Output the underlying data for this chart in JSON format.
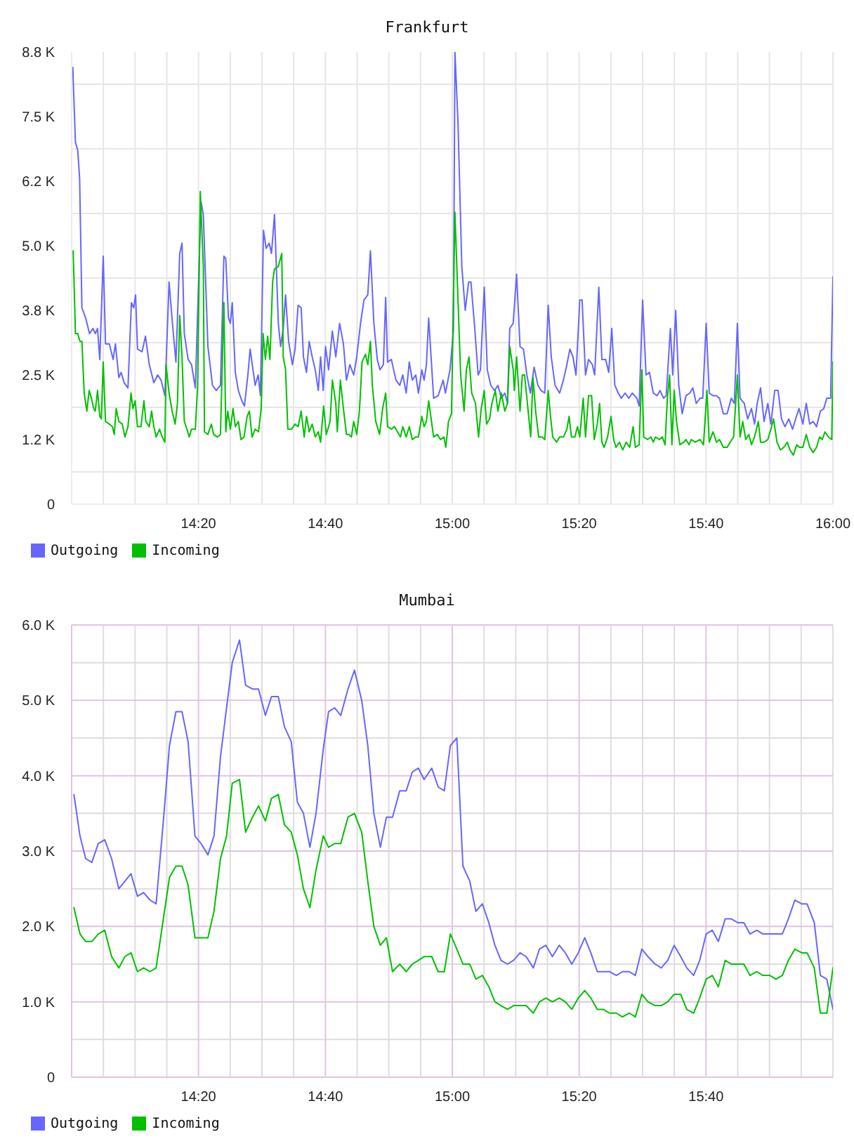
{
  "chart_data": [
    {
      "type": "line",
      "title": "Frankfurt",
      "series": [
        {
          "name": "Outgoing",
          "color": "#6666ff",
          "x": [
            14.003,
            14.01,
            14.016,
            14.021,
            14.027,
            14.037,
            14.047,
            14.056,
            14.062,
            14.068,
            14.074,
            14.083,
            14.089,
            14.099,
            14.109,
            14.115,
            14.124,
            14.13,
            14.138,
            14.148,
            14.157,
            14.163,
            14.168,
            14.173,
            14.185,
            14.194,
            14.204,
            14.216,
            14.226,
            14.235,
            14.245,
            14.256,
            14.266,
            14.274,
            14.284,
            14.29,
            14.296,
            14.306,
            14.315,
            14.325,
            14.34,
            14.346,
            14.358,
            14.37,
            14.38,
            14.391,
            14.4,
            14.405,
            14.412,
            14.417,
            14.422,
            14.43,
            14.438,
            14.447,
            14.454,
            14.463,
            14.469,
            14.482,
            14.49,
            14.496,
            14.504,
            14.511,
            14.519,
            14.525,
            14.533,
            14.543,
            14.549,
            14.556,
            14.562,
            14.57,
            14.58,
            14.587,
            14.595,
            14.603,
            14.609,
            14.617,
            14.624,
            14.632,
            14.64,
            14.648,
            14.654,
            14.661,
            14.667,
            14.675,
            14.685,
            14.694,
            14.704,
            14.714,
            14.722,
            14.731,
            14.741,
            14.749,
            14.759,
            14.768,
            14.778,
            14.785,
            14.794,
            14.803,
            14.81,
            14.819,
            14.825,
            14.83,
            14.84,
            14.852,
            14.862,
            14.87,
            14.879,
            14.887,
            14.895,
            14.904,
            14.911,
            14.92,
            14.926,
            14.932,
            14.938,
            14.951,
            14.963,
            14.976,
            14.982,
            14.994,
            15.003,
            15.007,
            15.015,
            15.025,
            15.034,
            15.043,
            15.049,
            15.059,
            15.068,
            15.074,
            15.084,
            15.092,
            15.101,
            15.111,
            15.12,
            15.129,
            15.138,
            15.145,
            15.151,
            15.16,
            15.169,
            15.178,
            15.187,
            15.196,
            15.205,
            15.215,
            15.225,
            15.233,
            15.243,
            15.252,
            15.26,
            15.27,
            15.282,
            15.292,
            15.301,
            15.309,
            15.317,
            15.325,
            15.335,
            15.341,
            15.35,
            15.358,
            15.368,
            15.374,
            15.385,
            15.393,
            15.403,
            15.411,
            15.419,
            15.427,
            15.436,
            15.444,
            15.454,
            15.464,
            15.473,
            15.485,
            15.491,
            15.5,
            15.509,
            15.518,
            15.528,
            15.538,
            15.546,
            15.555,
            15.562,
            15.573,
            15.579,
            15.587,
            15.595,
            15.604,
            15.614,
            15.624,
            15.632,
            15.641,
            15.651,
            15.658,
            15.667,
            15.675,
            15.685,
            15.694,
            15.702,
            15.712,
            15.722,
            15.733,
            15.741,
            15.749,
            15.756,
            15.767,
            15.776,
            15.786,
            15.794,
            15.801,
            15.81,
            15.819,
            15.829,
            15.837,
            15.847,
            15.856,
            15.865,
            15.874,
            15.884,
            15.894,
            15.902,
            15.911,
            15.921,
            15.93,
            15.939,
            15.948,
            15.957,
            15.967,
            15.976,
            15.984,
            15.994,
            16.0
          ],
          "values": [
            8450,
            7000,
            6850,
            6300,
            3800,
            3600,
            3300,
            3400,
            3300,
            3400,
            2800,
            4800,
            3100,
            3100,
            2800,
            3100,
            2450,
            2550,
            2350,
            2250,
            3900,
            3800,
            4050,
            3000,
            2950,
            3250,
            2700,
            2350,
            2500,
            2400,
            2100,
            4300,
            3400,
            2750,
            4850,
            5050,
            3300,
            2800,
            2700,
            2250,
            5850,
            5600,
            3050,
            2300,
            2200,
            2300,
            4800,
            4750,
            3600,
            3500,
            3900,
            2550,
            2200,
            2000,
            1900,
            2500,
            3000,
            2300,
            2500,
            2100,
            5300,
            4950,
            5050,
            4850,
            5600,
            3500,
            3050,
            3400,
            4050,
            3150,
            2700,
            3000,
            3850,
            3800,
            2850,
            2550,
            3150,
            2850,
            2600,
            2200,
            2850,
            2200,
            3050,
            2600,
            3350,
            2850,
            3500,
            3100,
            2400,
            2700,
            2500,
            2850,
            3500,
            3950,
            4050,
            4900,
            3500,
            2800,
            2600,
            2700,
            4000,
            2750,
            2800,
            2400,
            2300,
            2500,
            2150,
            2750,
            2400,
            2500,
            2150,
            2600,
            2400,
            2700,
            3600,
            2050,
            2100,
            2400,
            2150,
            2600,
            3350,
            8750,
            7400,
            4600,
            3750,
            4300,
            4300,
            3400,
            2500,
            2600,
            4200,
            2600,
            2300,
            2200,
            2300,
            2050,
            2150,
            1950,
            3400,
            3500,
            4450,
            3050,
            3000,
            2500,
            2150,
            2650,
            2300,
            2200,
            2150,
            3850,
            2850,
            2300,
            2150,
            2400,
            2700,
            3000,
            2850,
            2500,
            3950,
            3950,
            2500,
            2800,
            2700,
            2500,
            4200,
            2800,
            2800,
            2550,
            3400,
            2300,
            2150,
            2050,
            2150,
            2050,
            2150,
            2050,
            1900,
            3950,
            2500,
            2550,
            2150,
            2100,
            2200,
            2050,
            2100,
            3400,
            2500,
            3750,
            2300,
            1750,
            2100,
            2150,
            2250,
            1950,
            2050,
            2050,
            3500,
            2150,
            2100,
            2100,
            2050,
            1750,
            1750,
            2050,
            1950,
            3500,
            2050,
            1950,
            1650,
            1850,
            1550,
            1950,
            2250,
            1600,
            1950,
            1550,
            2200,
            2200,
            1650,
            1500,
            1650,
            1450,
            1650,
            1850,
            1550,
            1950,
            1550,
            1600,
            1500,
            1800,
            1850,
            2050,
            2050,
            4400
          ]
        },
        {
          "name": "Incoming",
          "color": "#00c000",
          "x": [
            14.004,
            14.01,
            14.016,
            14.022,
            14.027,
            14.033,
            14.04,
            14.046,
            14.052,
            14.058,
            14.062,
            14.068,
            14.074,
            14.078,
            14.083,
            14.089,
            14.099,
            14.107,
            14.112,
            14.117,
            14.124,
            14.133,
            14.14,
            14.148,
            14.156,
            14.161,
            14.167,
            14.173,
            14.182,
            14.19,
            14.195,
            14.204,
            14.21,
            14.216,
            14.222,
            14.231,
            14.238,
            14.245,
            14.248,
            14.256,
            14.264,
            14.272,
            14.278,
            14.284,
            14.29,
            14.296,
            14.303,
            14.309,
            14.315,
            14.325,
            14.331,
            14.338,
            14.346,
            14.349,
            14.358,
            14.367,
            14.373,
            14.383,
            14.391,
            14.4,
            14.405,
            14.41,
            14.417,
            14.424,
            14.43,
            14.438,
            14.445,
            14.453,
            14.461,
            14.467,
            14.474,
            14.482,
            14.491,
            14.498,
            14.503,
            14.509,
            14.515,
            14.521,
            14.528,
            14.533,
            14.543,
            14.552,
            14.556,
            14.562,
            14.568,
            14.578,
            14.587,
            14.595,
            14.603,
            14.611,
            14.617,
            14.624,
            14.632,
            14.64,
            14.648,
            14.654,
            14.662,
            14.669,
            14.679,
            14.685,
            14.694,
            14.698,
            14.706,
            14.714,
            14.722,
            14.728,
            14.735,
            14.741,
            14.749,
            14.756,
            14.763,
            14.772,
            14.778,
            14.785,
            14.79,
            14.799,
            14.809,
            14.817,
            14.825,
            14.83,
            14.84,
            14.848,
            14.856,
            14.864,
            14.87,
            14.879,
            14.887,
            14.895,
            14.904,
            14.911,
            14.92,
            14.926,
            14.932,
            14.938,
            14.951,
            14.961,
            14.969,
            14.978,
            14.983,
            14.99,
            14.998,
            15.007,
            15.015,
            15.022,
            15.031,
            15.037,
            15.044,
            15.051,
            15.061,
            15.069,
            15.076,
            15.084,
            15.09,
            15.098,
            15.104,
            15.113,
            15.12,
            15.129,
            15.138,
            15.145,
            15.151,
            15.16,
            15.163,
            15.169,
            15.178,
            15.184,
            15.19,
            15.196,
            15.206,
            15.212,
            15.219,
            15.227,
            15.236,
            15.243,
            15.252,
            15.258,
            15.264,
            15.274,
            15.282,
            15.292,
            15.301,
            15.307,
            15.313,
            15.322,
            15.329,
            15.335,
            15.344,
            15.35,
            15.358,
            15.366,
            15.373,
            15.381,
            15.387,
            15.393,
            15.399,
            15.408,
            15.417,
            15.424,
            15.43,
            15.439,
            15.448,
            15.457,
            15.466,
            15.475,
            15.481,
            15.491,
            15.498,
            15.503,
            15.513,
            15.522,
            15.528,
            15.534,
            15.544,
            15.552,
            15.559,
            15.565,
            15.571,
            15.577,
            15.583,
            15.589,
            15.598,
            15.608,
            15.614,
            15.622,
            15.628,
            15.638,
            15.651,
            15.66,
            15.669,
            15.675,
            15.685,
            15.694,
            15.702,
            15.712,
            15.722,
            15.73,
            15.739,
            15.749,
            15.756,
            15.763,
            15.771,
            15.779,
            15.786,
            15.794,
            15.804,
            15.81,
            15.819,
            15.829,
            15.837,
            15.844,
            15.853,
            15.862,
            15.871,
            15.88,
            15.887,
            15.896,
            15.905,
            15.912,
            15.921,
            15.93,
            15.939,
            15.948,
            15.957,
            15.965,
            15.972,
            15.979,
            15.988,
            15.997,
            16.0
          ],
          "values": [
            4900,
            3300,
            3300,
            3150,
            3150,
            2150,
            1800,
            2200,
            2050,
            1850,
            1800,
            2200,
            1700,
            1650,
            2750,
            1600,
            1550,
            1500,
            1350,
            1850,
            1600,
            1550,
            1300,
            1500,
            2150,
            1850,
            2000,
            1500,
            1500,
            2000,
            1600,
            1500,
            1800,
            1500,
            1300,
            1450,
            1300,
            1200,
            2700,
            2150,
            1800,
            1550,
            1950,
            3650,
            2850,
            1600,
            1450,
            1300,
            1450,
            1450,
            2300,
            6050,
            4600,
            1400,
            1350,
            1550,
            1350,
            1300,
            1350,
            3900,
            1400,
            1800,
            1450,
            1850,
            1500,
            1600,
            1250,
            1300,
            1700,
            1800,
            1300,
            1450,
            1400,
            1850,
            3300,
            2800,
            3250,
            2800,
            4300,
            4550,
            4600,
            4850,
            2850,
            2600,
            1450,
            1450,
            1550,
            1500,
            1800,
            1300,
            1700,
            1400,
            1550,
            1300,
            1400,
            1200,
            1900,
            1350,
            1600,
            2400,
            1950,
            1400,
            2400,
            1850,
            1350,
            1350,
            1300,
            1600,
            1350,
            1800,
            2750,
            2900,
            2700,
            3150,
            2300,
            1600,
            1350,
            1850,
            2150,
            1500,
            1450,
            1500,
            1400,
            1300,
            1500,
            1300,
            1500,
            1250,
            1300,
            1300,
            1700,
            1500,
            1600,
            2000,
            1300,
            1350,
            1250,
            1300,
            1100,
            1600,
            1750,
            5650,
            3950,
            2500,
            1800,
            2600,
            2850,
            2150,
            1950,
            1300,
            1850,
            2200,
            1550,
            1650,
            1950,
            2200,
            1800,
            2150,
            1800,
            1950,
            3050,
            2600,
            2200,
            2850,
            1800,
            2500,
            2500,
            2050,
            1300,
            2450,
            1800,
            1300,
            1300,
            1250,
            2200,
            1700,
            1300,
            1200,
            1300,
            1300,
            1450,
            1700,
            1300,
            1300,
            1500,
            1300,
            2050,
            1300,
            2100,
            2100,
            1250,
            1550,
            1950,
            1200,
            1100,
            1300,
            1700,
            1250,
            1100,
            1200,
            1050,
            1200,
            1100,
            1500,
            1100,
            1150,
            2600,
            1300,
            1250,
            1300,
            1200,
            1300,
            1250,
            1300,
            1150,
            2050,
            2500,
            1150,
            2200,
            1600,
            1150,
            1200,
            1250,
            1150,
            1250,
            1200,
            1250,
            1150,
            2200,
            1200,
            1400,
            1200,
            1250,
            1100,
            1100,
            1200,
            1300,
            2500,
            1300,
            1600,
            1250,
            1350,
            1150,
            1300,
            1600,
            1200,
            1200,
            1250,
            1450,
            1650,
            1200,
            1050,
            1100,
            1200,
            1050,
            950,
            1150,
            1100,
            1100,
            1350,
            1100,
            1000,
            1100,
            1300,
            1250,
            1400,
            1300,
            1250,
            2750
          ]
        }
      ],
      "xlim": [
        14,
        16
      ],
      "xticks": [
        {
          "value": 14.0833,
          "label": null
        },
        {
          "value": 14.1667,
          "label": null
        },
        {
          "value": 14.25,
          "label": null
        },
        {
          "value": 14.3333,
          "label": "14:20"
        },
        {
          "value": 14.4167,
          "label": null
        },
        {
          "value": 14.5,
          "label": null
        },
        {
          "value": 14.5833,
          "label": null
        },
        {
          "value": 14.6667,
          "label": "14:40"
        },
        {
          "value": 14.75,
          "label": null
        },
        {
          "value": 14.8333,
          "label": null
        },
        {
          "value": 14.9167,
          "label": null
        },
        {
          "value": 15,
          "label": "15:00"
        },
        {
          "value": 15.0833,
          "label": null
        },
        {
          "value": 15.1667,
          "label": null
        },
        {
          "value": 15.25,
          "label": null
        },
        {
          "value": 15.3333,
          "label": "15:20"
        },
        {
          "value": 15.4167,
          "label": null
        },
        {
          "value": 15.5,
          "label": null
        },
        {
          "value": 15.5833,
          "label": null
        },
        {
          "value": 15.6667,
          "label": "15:40"
        },
        {
          "value": 15.75,
          "label": null
        },
        {
          "value": 15.8333,
          "label": null
        },
        {
          "value": 15.9167,
          "label": null
        },
        {
          "value": 16,
          "label": "16:00"
        }
      ],
      "ylim": [
        0,
        8750
      ],
      "yticks": [
        0,
        {
          "value": 625,
          "label": null
        },
        {
          "value": 1250,
          "label": "1.2 K"
        },
        {
          "value": 1875,
          "label": null
        },
        {
          "value": 2500,
          "label": "2.5 K"
        },
        {
          "value": 3125,
          "label": null
        },
        {
          "value": 3750,
          "label": "3.8 K"
        },
        {
          "value": 4375,
          "label": null
        },
        {
          "value": 5000,
          "label": "5.0 K"
        },
        {
          "value": 5625,
          "label": null
        },
        {
          "value": 6250,
          "label": "6.2 K"
        },
        {
          "value": 6875,
          "label": null
        },
        {
          "value": 7500,
          "label": "7.5 K"
        },
        {
          "value": 8125,
          "label": null
        },
        {
          "value": 8750,
          "label": "8.8 K"
        }
      ],
      "grid": true,
      "legend": "bottom left"
    },
    {
      "type": "line",
      "title": "Mumbai",
      "series": [
        {
          "name": "Outgoing",
          "color": "#6666ff",
          "x": [
            14.006,
            14.022,
            14.037,
            14.053,
            14.07,
            14.087,
            14.105,
            14.124,
            14.14,
            14.156,
            14.173,
            14.189,
            14.206,
            14.222,
            14.241,
            14.257,
            14.274,
            14.29,
            14.306,
            14.324,
            14.34,
            14.358,
            14.374,
            14.391,
            14.407,
            14.422,
            14.441,
            14.457,
            14.475,
            14.491,
            14.509,
            14.525,
            14.543,
            14.559,
            14.577,
            14.593,
            14.609,
            14.626,
            14.642,
            14.661,
            14.675,
            14.691,
            14.707,
            14.726,
            14.743,
            14.762,
            14.778,
            14.794,
            14.811,
            14.827,
            14.843,
            14.862,
            14.879,
            14.895,
            14.911,
            14.926,
            14.946,
            14.963,
            14.979,
            14.995,
            15.012,
            15.028,
            15.046,
            15.062,
            15.079,
            15.096,
            15.112,
            15.128,
            15.145,
            15.161,
            15.178,
            15.194,
            15.213,
            15.229,
            15.246,
            15.263,
            15.281,
            15.297,
            15.314,
            15.331,
            15.348,
            15.364,
            15.381,
            15.397,
            15.413,
            15.431,
            15.447,
            15.465,
            15.481,
            15.498,
            15.514,
            15.533,
            15.549,
            15.566,
            15.583,
            15.6,
            15.616,
            15.634,
            15.65,
            15.667,
            15.683,
            15.699,
            15.717,
            15.733,
            15.75,
            15.766,
            15.782,
            15.8,
            15.816,
            15.834,
            15.85,
            15.867,
            15.883,
            15.9,
            15.918,
            15.932,
            15.951,
            15.967,
            15.984,
            16.0
          ],
          "values": [
            3750,
            3200,
            2900,
            2850,
            3100,
            3150,
            2900,
            2500,
            2600,
            2700,
            2400,
            2450,
            2350,
            2300,
            3400,
            4400,
            4850,
            4850,
            4450,
            3200,
            3100,
            2950,
            3200,
            4250,
            4900,
            5500,
            5800,
            5200,
            5150,
            5150,
            4800,
            5050,
            5050,
            4650,
            4450,
            3650,
            3500,
            3050,
            3500,
            4350,
            4850,
            4900,
            4800,
            5150,
            5400,
            5000,
            4400,
            3500,
            3050,
            3450,
            3450,
            3800,
            3800,
            4050,
            4100,
            3950,
            4100,
            3850,
            3800,
            4400,
            4500,
            2800,
            2600,
            2200,
            2300,
            2050,
            1750,
            1550,
            1500,
            1550,
            1650,
            1600,
            1450,
            1700,
            1750,
            1600,
            1750,
            1650,
            1500,
            1650,
            1850,
            1650,
            1400,
            1400,
            1400,
            1350,
            1400,
            1400,
            1350,
            1700,
            1600,
            1500,
            1450,
            1550,
            1750,
            1600,
            1450,
            1350,
            1550,
            1900,
            1950,
            1800,
            2100,
            2100,
            2050,
            2050,
            1900,
            1950,
            1900,
            1900,
            1900,
            1900,
            2100,
            2350,
            2300,
            2300,
            2050,
            1350,
            1300,
            900
          ]
        },
        {
          "name": "Incoming",
          "color": "#00c000",
          "x": [
            14.006,
            14.022,
            14.037,
            14.053,
            14.07,
            14.087,
            14.105,
            14.124,
            14.14,
            14.156,
            14.173,
            14.189,
            14.206,
            14.222,
            14.257,
            14.274,
            14.29,
            14.306,
            14.324,
            14.34,
            14.358,
            14.374,
            14.391,
            14.407,
            14.422,
            14.441,
            14.457,
            14.475,
            14.491,
            14.509,
            14.525,
            14.543,
            14.559,
            14.577,
            14.593,
            14.609,
            14.626,
            14.642,
            14.661,
            14.675,
            14.691,
            14.707,
            14.726,
            14.743,
            14.762,
            14.778,
            14.794,
            14.811,
            14.827,
            14.843,
            14.862,
            14.879,
            14.895,
            14.911,
            14.926,
            14.946,
            14.963,
            14.979,
            14.995,
            15.012,
            15.028,
            15.046,
            15.062,
            15.079,
            15.096,
            15.112,
            15.128,
            15.145,
            15.161,
            15.178,
            15.194,
            15.213,
            15.229,
            15.246,
            15.263,
            15.281,
            15.297,
            15.314,
            15.331,
            15.348,
            15.364,
            15.381,
            15.397,
            15.413,
            15.431,
            15.447,
            15.465,
            15.481,
            15.498,
            15.514,
            15.533,
            15.549,
            15.566,
            15.583,
            15.6,
            15.616,
            15.634,
            15.65,
            15.667,
            15.683,
            15.699,
            15.717,
            15.733,
            15.75,
            15.766,
            15.782,
            15.8,
            15.816,
            15.834,
            15.85,
            15.867,
            15.883,
            15.9,
            15.918,
            15.932,
            15.951,
            15.967,
            15.984,
            16.0
          ],
          "values": [
            2250,
            1900,
            1800,
            1800,
            1900,
            1950,
            1600,
            1450,
            1600,
            1650,
            1400,
            1450,
            1400,
            1450,
            2650,
            2800,
            2800,
            2550,
            1850,
            1850,
            1850,
            2200,
            2900,
            3200,
            3900,
            3950,
            3250,
            3450,
            3600,
            3400,
            3700,
            3750,
            3350,
            3250,
            2950,
            2500,
            2250,
            2750,
            3200,
            3050,
            3100,
            3100,
            3450,
            3500,
            3250,
            2600,
            2000,
            1750,
            1850,
            1400,
            1500,
            1400,
            1500,
            1550,
            1600,
            1600,
            1400,
            1400,
            1900,
            1700,
            1500,
            1500,
            1300,
            1350,
            1200,
            1000,
            950,
            900,
            950,
            950,
            950,
            850,
            1000,
            1050,
            1000,
            1050,
            1000,
            900,
            1050,
            1150,
            1050,
            900,
            900,
            850,
            850,
            800,
            850,
            800,
            1100,
            1000,
            950,
            950,
            1000,
            1100,
            1100,
            900,
            850,
            1050,
            1300,
            1350,
            1200,
            1550,
            1500,
            1500,
            1500,
            1350,
            1400,
            1350,
            1350,
            1300,
            1350,
            1550,
            1700,
            1650,
            1650,
            1450,
            850,
            850,
            1450
          ]
        }
      ],
      "xlim": [
        14,
        16
      ],
      "xticks": [
        {
          "value": 14,
          "label": null
        },
        {
          "value": 14.0833,
          "label": null
        },
        {
          "value": 14.1667,
          "label": null
        },
        {
          "value": 14.25,
          "label": null
        },
        {
          "value": 14.3333,
          "label": "14:20"
        },
        {
          "value": 14.4167,
          "label": null
        },
        {
          "value": 14.5,
          "label": null
        },
        {
          "value": 14.5833,
          "label": null
        },
        {
          "value": 14.6667,
          "label": "14:40"
        },
        {
          "value": 14.75,
          "label": null
        },
        {
          "value": 14.8333,
          "label": null
        },
        {
          "value": 14.9167,
          "label": null
        },
        {
          "value": 15,
          "label": "15:00"
        },
        {
          "value": 15.0833,
          "label": null
        },
        {
          "value": 15.1667,
          "label": null
        },
        {
          "value": 15.25,
          "label": null
        },
        {
          "value": 15.3333,
          "label": "15:20"
        },
        {
          "value": 15.4167,
          "label": null
        },
        {
          "value": 15.5,
          "label": null
        },
        {
          "value": 15.5833,
          "label": null
        },
        {
          "value": 15.6667,
          "label": "15:40"
        },
        {
          "value": 15.75,
          "label": null
        },
        {
          "value": 15.8333,
          "label": null
        },
        {
          "value": 15.9167,
          "label": null
        },
        {
          "value": 16,
          "label": null
        }
      ],
      "ylim": [
        0,
        6000
      ],
      "yticks": [
        0,
        {
          "value": 500,
          "label": null
        },
        {
          "value": 1000,
          "label": "1.0 K"
        },
        {
          "value": 1500,
          "label": null
        },
        {
          "value": 2000,
          "label": "2.0 K"
        },
        {
          "value": 2500,
          "label": null
        },
        {
          "value": 3000,
          "label": "3.0 K"
        },
        {
          "value": 3500,
          "label": null
        },
        {
          "value": 4000,
          "label": "4.0 K"
        },
        {
          "value": 4500,
          "label": null
        },
        {
          "value": 5000,
          "label": "5.0 K"
        },
        {
          "value": 5500,
          "label": null
        },
        {
          "value": 6000,
          "label": "6.0 K"
        }
      ],
      "grid": true,
      "legend": "bottom left"
    }
  ]
}
